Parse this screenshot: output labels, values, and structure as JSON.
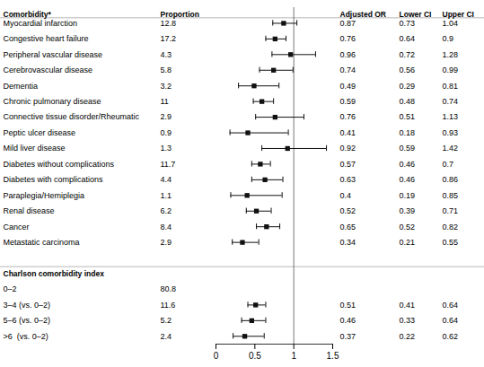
{
  "chart_data": {
    "type": "forest",
    "columns": [
      "Comorbidity*",
      "Proportion",
      "Adjusted OR",
      "Lower CI",
      "Upper CI"
    ],
    "groups": [
      {
        "categories": [
          "Myocardial infarction",
          "Congestive heart failure",
          "Peripheral vascular disease",
          "Cerebrovascular disease",
          "Dementia",
          "Chronic pulmonary disease",
          "Connective tissue disorder/Rheumatic",
          "Peptic ulcer disease",
          "Mild liver disease",
          "Diabetes without complications",
          "Diabetes with complications",
          "Paraplegia/Hemiplegia",
          "Renal disease",
          "Cancer",
          "Metastatic carcinoma"
        ],
        "proportion": [
          12.8,
          17.2,
          4.3,
          5.8,
          3.2,
          11,
          2.9,
          0.9,
          1.3,
          11.7,
          4.4,
          1.1,
          6.2,
          8.4,
          2.9
        ],
        "values": [
          0.87,
          0.76,
          0.96,
          0.74,
          0.49,
          0.59,
          0.76,
          0.41,
          0.92,
          0.57,
          0.63,
          0.4,
          0.52,
          0.65,
          0.34
        ],
        "lower": [
          0.73,
          0.64,
          0.72,
          0.56,
          0.29,
          0.48,
          0.51,
          0.18,
          0.59,
          0.46,
          0.46,
          0.19,
          0.39,
          0.52,
          0.21
        ],
        "upper": [
          1.04,
          0.9,
          1.28,
          0.99,
          0.81,
          0.74,
          1.13,
          0.93,
          1.42,
          0.7,
          0.86,
          0.85,
          0.71,
          0.82,
          0.55
        ]
      },
      {
        "title": "Charlson comorbidity index",
        "categories": [
          "0–2",
          "3–4 (vs. 0–2)",
          "5–6 (vs. 0–2)",
          ">6  (vs. 0–2)"
        ],
        "proportion": [
          80.8,
          11.6,
          5.2,
          2.4
        ],
        "values": [
          null,
          0.51,
          0.46,
          0.37
        ],
        "lower": [
          null,
          0.41,
          0.33,
          0.22
        ],
        "upper": [
          null,
          0.64,
          0.64,
          0.62
        ]
      }
    ],
    "xlim": [
      0,
      1.5
    ],
    "xticks": [
      0,
      0.5,
      1,
      1.5
    ],
    "reference_x": 1,
    "color": "#111111"
  }
}
